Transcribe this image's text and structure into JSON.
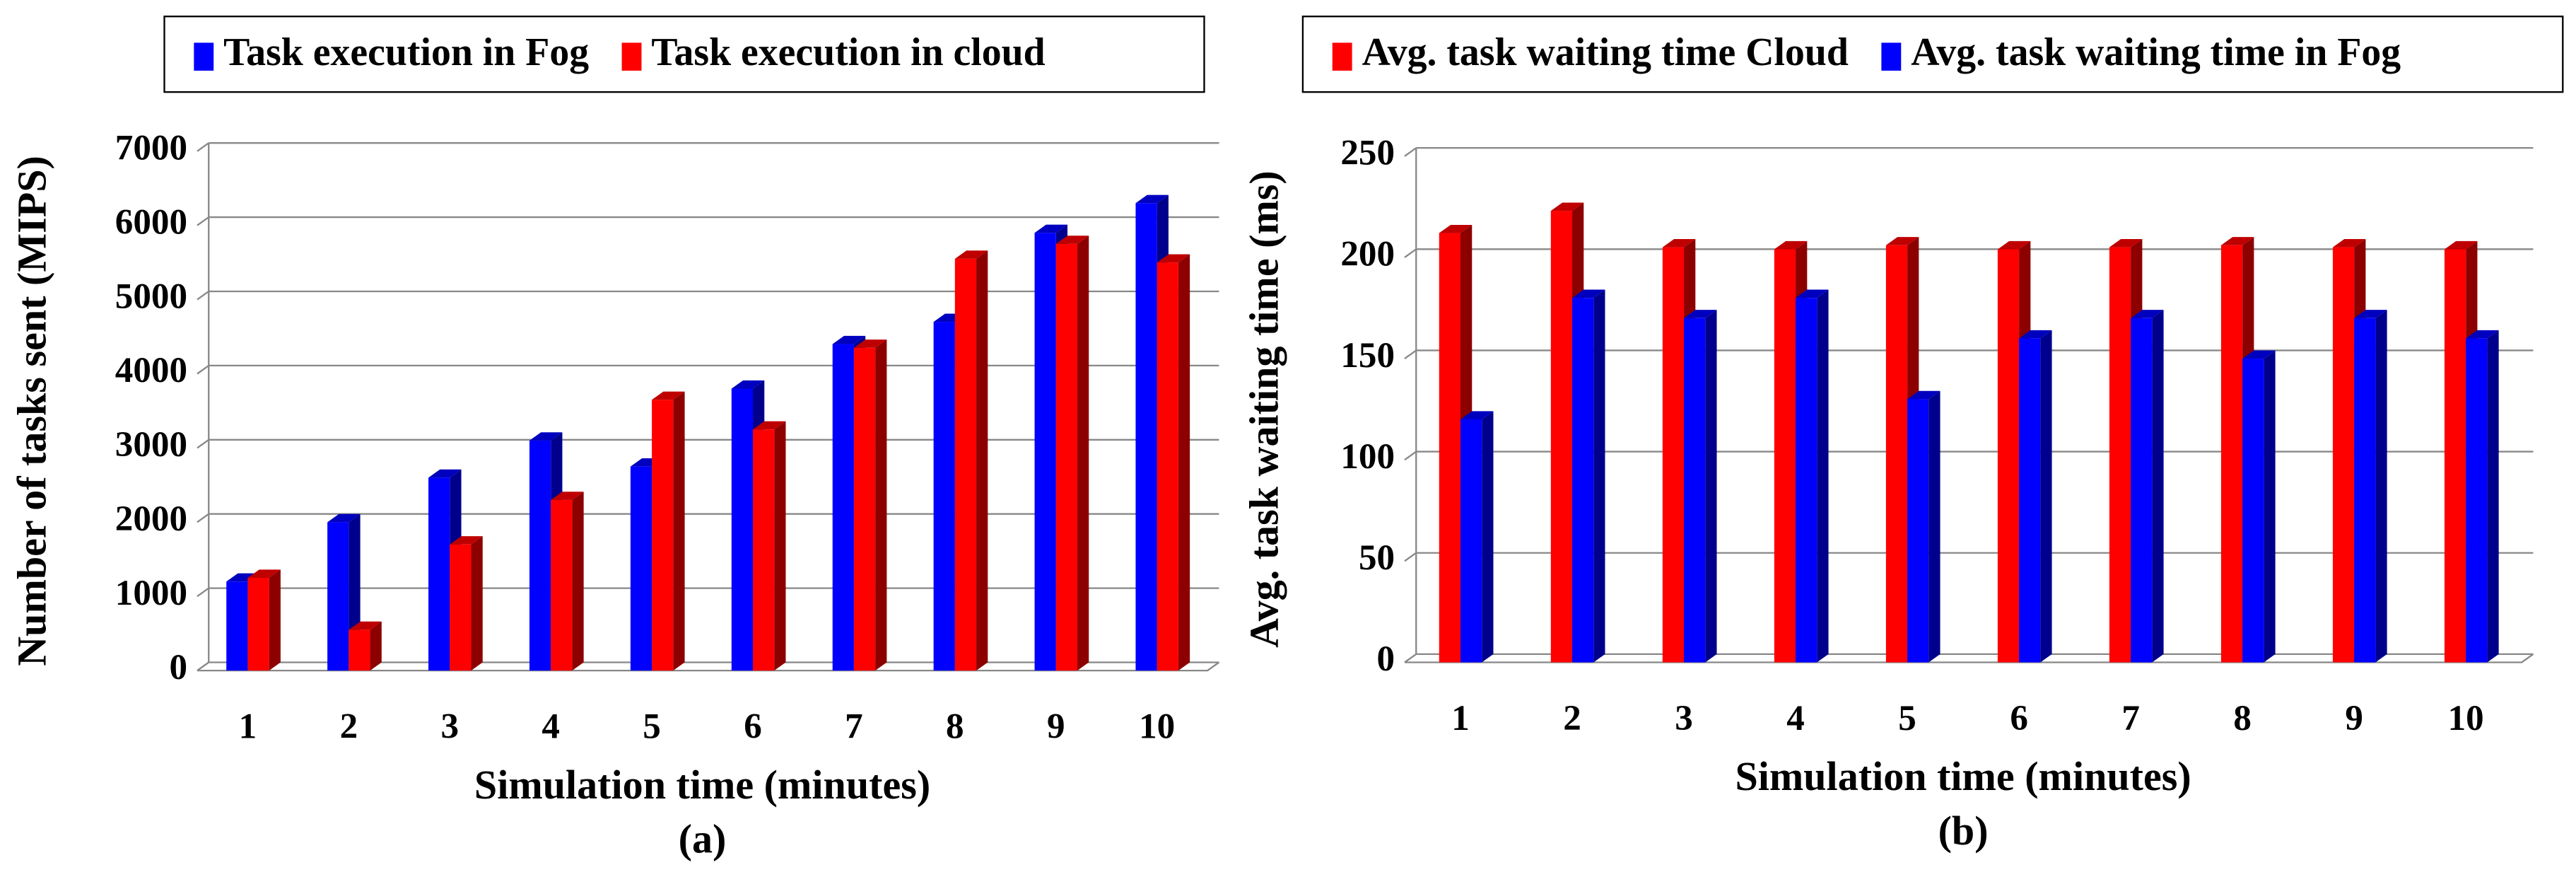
{
  "chart_data": [
    {
      "type": "bar",
      "caption": "(a)",
      "x_label": "Simulation time (minutes)",
      "y_label": "Number of tasks sent (MIPS)",
      "categories": [
        "1",
        "2",
        "3",
        "4",
        "5",
        "6",
        "7",
        "8",
        "9",
        "10"
      ],
      "series": [
        {
          "name": "Task execution in Fog",
          "color": "#0000ff",
          "values": [
            1200,
            2000,
            2600,
            3100,
            2750,
            3800,
            4400,
            4700,
            5900,
            6300
          ]
        },
        {
          "name": "Task execution in cloud",
          "color": "#ff0000",
          "values": [
            1250,
            550,
            1700,
            2300,
            3650,
            3250,
            4350,
            5550,
            5750,
            5500
          ]
        }
      ],
      "ylim": [
        0,
        7000
      ],
      "yticks": [
        0,
        1000,
        2000,
        3000,
        4000,
        5000,
        6000,
        7000
      ],
      "grid": true,
      "legend": "top"
    },
    {
      "type": "bar",
      "caption": "(b)",
      "x_label": "Simulation time (minutes)",
      "y_label": "Avg. task waiting time (ms)",
      "categories": [
        "1",
        "2",
        "3",
        "4",
        "5",
        "6",
        "7",
        "8",
        "9",
        "10"
      ],
      "series": [
        {
          "name": "Avg. task waiting time Cloud",
          "color": "#ff0000",
          "values": [
            212,
            223,
            205,
            204,
            206,
            204,
            205,
            206,
            205,
            204
          ]
        },
        {
          "name": "Avg. task waiting time in Fog",
          "color": "#0000ff",
          "values": [
            120,
            180,
            170,
            180,
            130,
            160,
            170,
            150,
            170,
            160
          ]
        }
      ],
      "ylim": [
        0,
        250
      ],
      "yticks": [
        0,
        50,
        100,
        150,
        200,
        250
      ],
      "grid": true,
      "legend": "top"
    }
  ]
}
